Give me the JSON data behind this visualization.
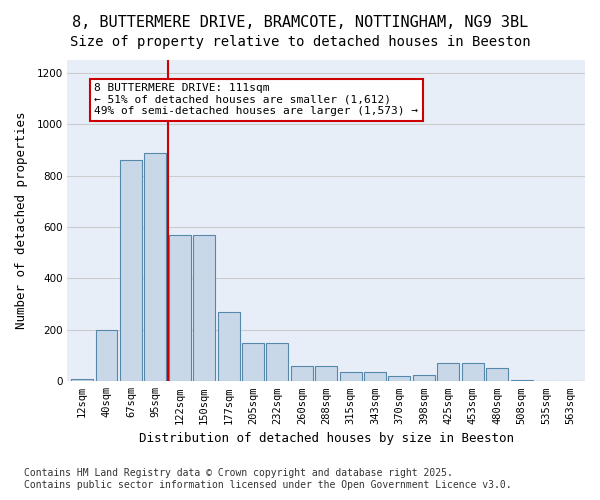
{
  "title1": "8, BUTTERMERE DRIVE, BRAMCOTE, NOTTINGHAM, NG9 3BL",
  "title2": "Size of property relative to detached houses in Beeston",
  "xlabel": "Distribution of detached houses by size in Beeston",
  "ylabel": "Number of detached properties",
  "bar_color": "#c8d8e8",
  "bar_edge_color": "#5588aa",
  "grid_color": "#cccccc",
  "bg_color": "#e8eef8",
  "annotation_box_color": "#cc0000",
  "vline_color": "#cc0000",
  "categories": [
    "12sqm",
    "40sqm",
    "67sqm",
    "95sqm",
    "122sqm",
    "150sqm",
    "177sqm",
    "205sqm",
    "232sqm",
    "260sqm",
    "288sqm",
    "315sqm",
    "343sqm",
    "370sqm",
    "398sqm",
    "425sqm",
    "453sqm",
    "480sqm",
    "508sqm",
    "535sqm",
    "563sqm"
  ],
  "values": [
    10,
    200,
    860,
    890,
    570,
    570,
    270,
    150,
    150,
    60,
    60,
    35,
    35,
    20,
    25,
    70,
    70,
    50,
    5,
    2,
    2
  ],
  "ylim": [
    0,
    1250
  ],
  "yticks": [
    0,
    200,
    400,
    600,
    800,
    1000,
    1200
  ],
  "property_size": "111sqm",
  "vline_position": 3.5,
  "annotation_text": "8 BUTTERMERE DRIVE: 111sqm\n← 51% of detached houses are smaller (1,612)\n49% of semi-detached houses are larger (1,573) →",
  "footnote": "Contains HM Land Registry data © Crown copyright and database right 2025.\nContains public sector information licensed under the Open Government Licence v3.0.",
  "title1_fontsize": 11,
  "title2_fontsize": 10,
  "xlabel_fontsize": 9,
  "ylabel_fontsize": 9,
  "tick_fontsize": 7.5,
  "annotation_fontsize": 8,
  "footnote_fontsize": 7
}
